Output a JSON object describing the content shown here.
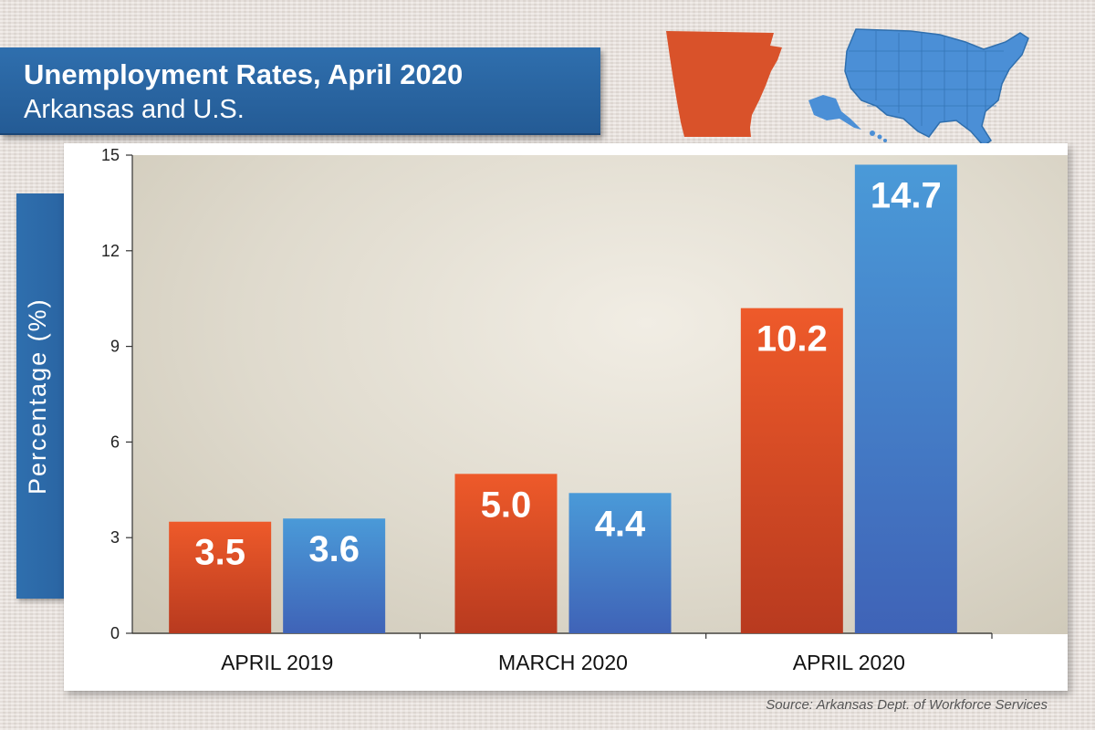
{
  "header": {
    "title": "Unemployment Rates, April 2020",
    "subtitle": "Arkansas and U.S."
  },
  "colors": {
    "arkansas_top": "#ee5a2a",
    "arkansas_bottom": "#b83a1f",
    "us_top": "#4a9ad8",
    "us_bottom": "#3f63b7",
    "banner": "#2f6fae"
  },
  "icons": [
    "arkansas-map-icon",
    "us-map-icon"
  ],
  "chart_data": {
    "type": "bar",
    "title": "Unemployment Rates, April 2020",
    "subtitle": "Arkansas and U.S.",
    "xlabel": "",
    "ylabel": "Percentage (%)",
    "ylim": [
      0,
      15
    ],
    "yticks": [
      0,
      3,
      6,
      9,
      12,
      15
    ],
    "ytick_labels": [
      "0",
      "3",
      "6",
      "9",
      "12",
      "15"
    ],
    "categories": [
      "APRIL 2019",
      "MARCH 2020",
      "APRIL 2020"
    ],
    "series": [
      {
        "name": "Arkansas",
        "values": [
          3.5,
          5.0,
          10.2
        ],
        "labels": [
          "3.5",
          "5.0",
          "10.2"
        ]
      },
      {
        "name": "U.S.",
        "values": [
          3.6,
          4.4,
          14.7
        ],
        "labels": [
          "3.6",
          "4.4",
          "14.7"
        ]
      }
    ],
    "grid": false,
    "legend": "none"
  },
  "source": "Source: Arkansas Dept. of Workforce Services"
}
